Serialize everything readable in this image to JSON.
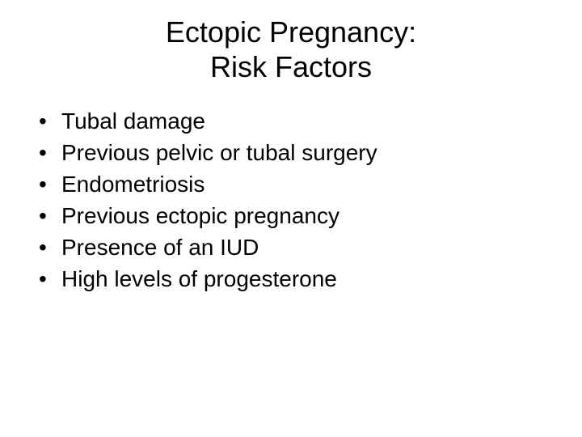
{
  "slide": {
    "background_color": "#ffffff",
    "text_color": "#000000",
    "font_family": "Arial",
    "title": {
      "line1": "Ectopic Pregnancy:",
      "line2": "Risk Factors",
      "fontsize": 36,
      "align": "center",
      "weight": 400
    },
    "bullets": {
      "fontsize": 28,
      "items": [
        "Tubal damage",
        "Previous pelvic or tubal surgery",
        "Endometriosis",
        "Previous ectopic pregnancy",
        "Presence of an IUD",
        "High levels of progesterone"
      ]
    }
  }
}
